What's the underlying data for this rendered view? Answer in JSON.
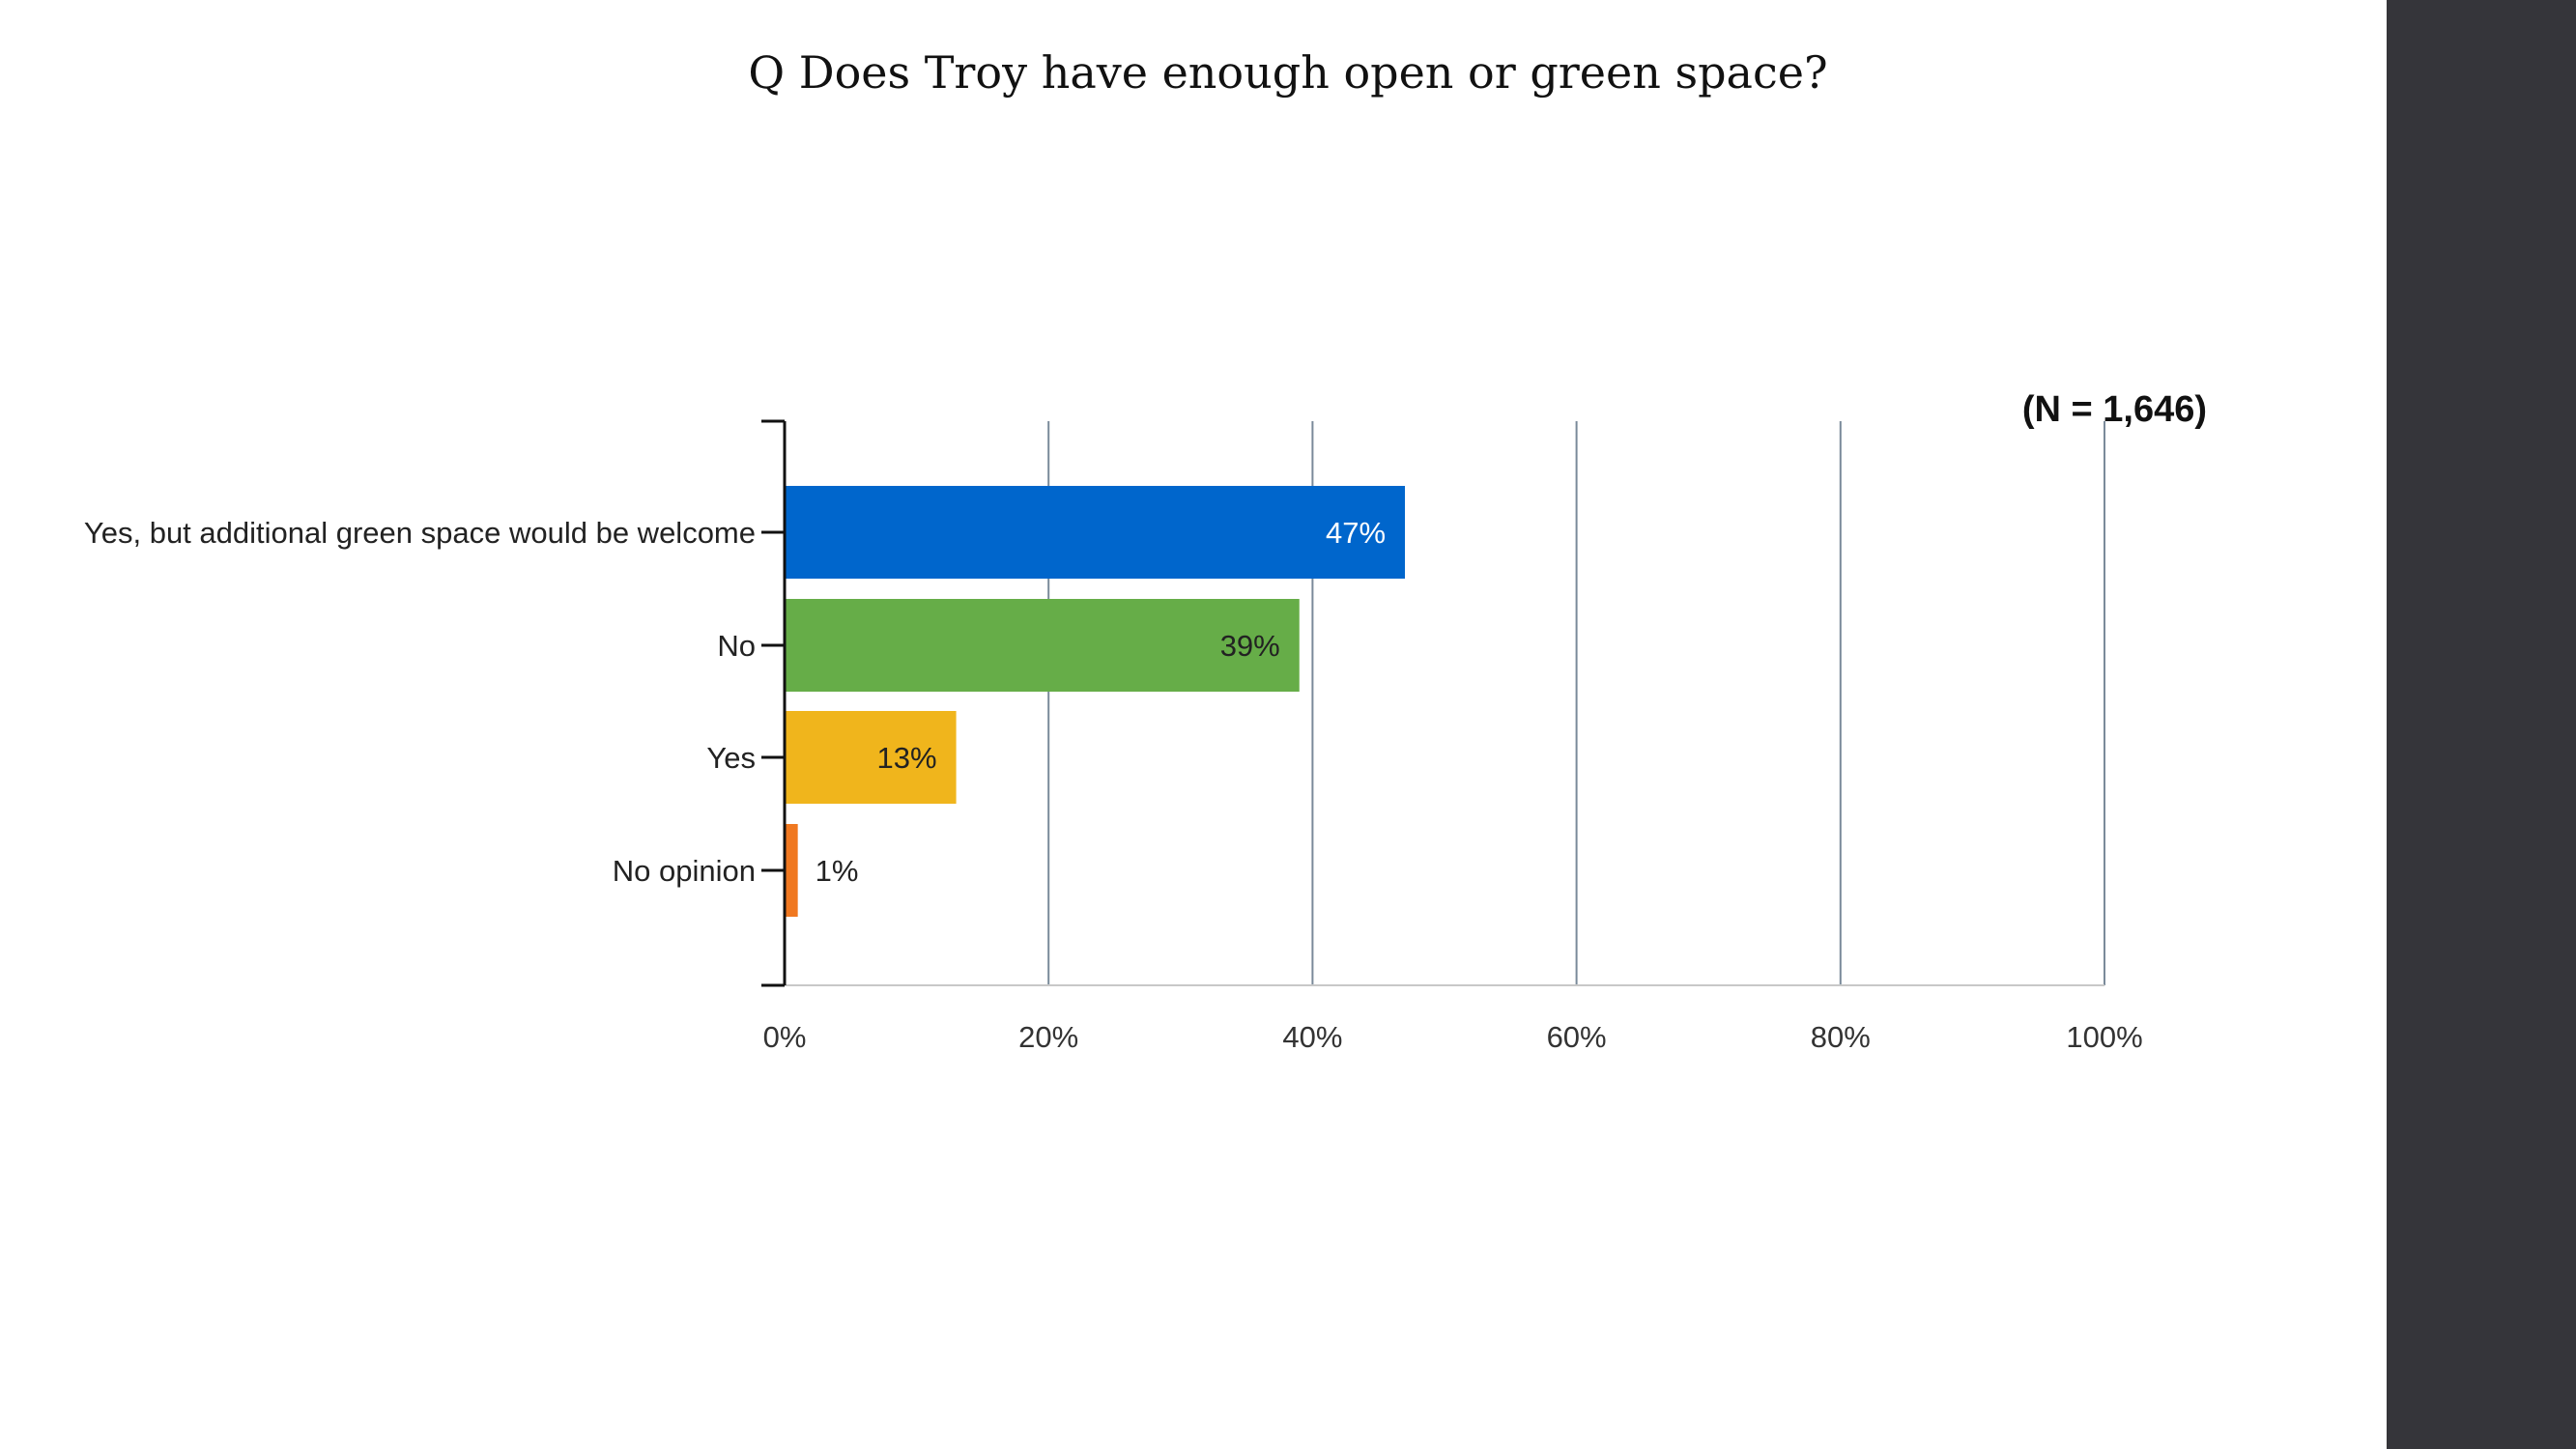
{
  "page_title": "Q Does Troy have enough open or green space?",
  "chart_data": {
    "type": "bar",
    "orientation": "horizontal",
    "title": "",
    "annotation": "(N = 1,646)",
    "categories": [
      "Yes, but additional green space would be welcome",
      "No",
      "Yes",
      "No opinion"
    ],
    "values": [
      47,
      39,
      13,
      1
    ],
    "data_labels": [
      "47%",
      "39%",
      "13%",
      "1%"
    ],
    "colors": [
      "#0066cc",
      "#66ad48",
      "#f0b51c",
      "#f07820"
    ],
    "label_colors": [
      "#ffffff",
      "#222222",
      "#222222",
      "#222222"
    ],
    "xlim": [
      0,
      100
    ],
    "x_ticks": [
      0,
      20,
      40,
      60,
      80,
      100
    ],
    "x_tick_labels": [
      "0%",
      "20%",
      "40%",
      "60%",
      "80%",
      "100%"
    ],
    "xlabel": "",
    "ylabel": "",
    "grid": true,
    "legend": false
  }
}
